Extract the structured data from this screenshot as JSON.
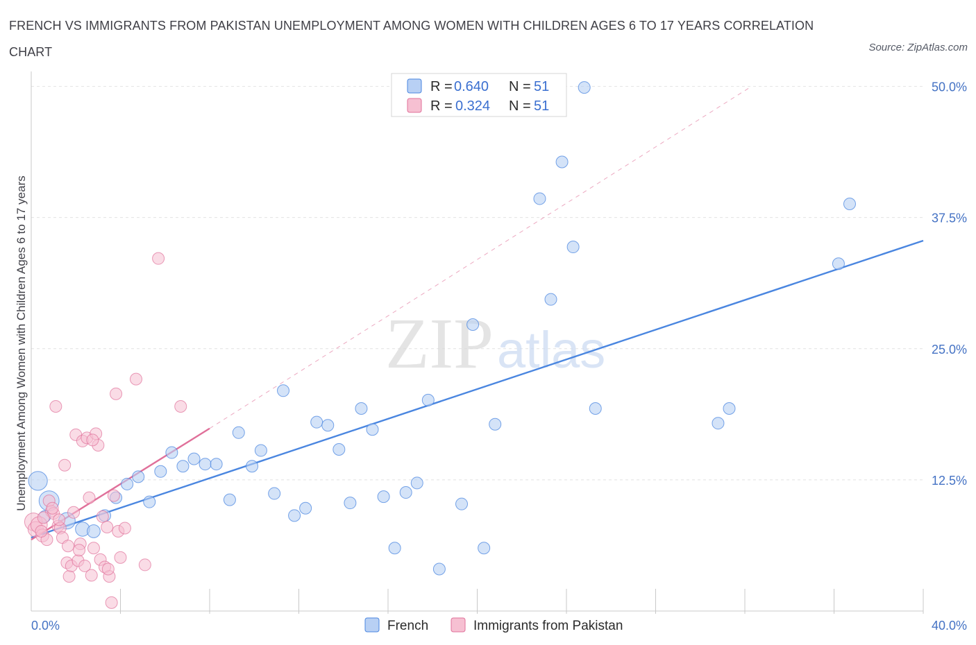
{
  "header": {
    "title": "FRENCH VS IMMIGRANTS FROM PAKISTAN UNEMPLOYMENT AMONG WOMEN WITH CHILDREN AGES 6 TO 17 YEARS CORRELATION CHART",
    "source": "Source: ZipAtlas.com"
  },
  "watermark": {
    "zip": "ZIP",
    "atlas": "atlas"
  },
  "legend": {
    "r_label": "R = ",
    "n_label": "N = ",
    "french": {
      "r": "0.640",
      "n": "51"
    },
    "pakistan": {
      "r": "0.324",
      "n": "51"
    }
  },
  "chart_data": {
    "type": "scatter",
    "title": "FRENCH VS IMMIGRANTS FROM PAKISTAN UNEMPLOYMENT AMONG WOMEN WITH CHILDREN AGES 6 TO 17 YEARS CORRELATION CHART",
    "ylabel": "Unemployment Among Women with Children Ages 6 to 17 years",
    "xlabel": "",
    "xlim": [
      0,
      40
    ],
    "ylim": [
      0,
      50.5
    ],
    "x_tick_labels": [
      {
        "value": 0,
        "label": "0.0%"
      },
      {
        "value": 40,
        "label": "40.0%"
      }
    ],
    "y_tick_labels": [
      {
        "value": 12.5,
        "label": "12.5%"
      },
      {
        "value": 25,
        "label": "25.0%"
      },
      {
        "value": 37.5,
        "label": "37.5%"
      },
      {
        "value": 50,
        "label": "50.0%"
      }
    ],
    "grid": true,
    "colors": {
      "french": "#4a86e0",
      "french_fill": "#b8d0f4",
      "pakistan": "#e0709a",
      "pakistan_fill": "#f6c0d2"
    },
    "series": [
      {
        "name": "French",
        "r": 0.64,
        "n": 51,
        "trend": {
          "x": [
            0,
            40
          ],
          "y": [
            7.0,
            35.3
          ]
        },
        "points": [
          [
            0.3,
            12.4,
            1.6
          ],
          [
            0.8,
            10.5,
            1.7
          ],
          [
            1.6,
            8.6,
            1.4
          ],
          [
            2.3,
            7.8,
            1.2
          ],
          [
            2.8,
            7.6,
            1.1
          ],
          [
            3.3,
            9.1,
            1
          ],
          [
            3.8,
            10.8,
            1
          ],
          [
            4.3,
            12.1,
            1
          ],
          [
            4.8,
            12.8,
            1
          ],
          [
            5.3,
            10.4,
            1
          ],
          [
            5.8,
            13.3,
            1
          ],
          [
            6.3,
            15.1,
            1
          ],
          [
            6.8,
            13.8,
            1
          ],
          [
            7.3,
            14.5,
            1
          ],
          [
            7.8,
            14.0,
            1
          ],
          [
            8.3,
            14.0,
            1
          ],
          [
            8.9,
            10.6,
            1
          ],
          [
            9.3,
            17.0,
            1
          ],
          [
            9.9,
            13.8,
            1
          ],
          [
            10.3,
            15.3,
            1
          ],
          [
            10.9,
            11.2,
            1
          ],
          [
            11.3,
            21.0,
            1
          ],
          [
            11.8,
            9.1,
            1
          ],
          [
            12.3,
            9.8,
            1
          ],
          [
            12.8,
            18.0,
            1
          ],
          [
            13.3,
            17.7,
            1
          ],
          [
            13.8,
            15.4,
            1
          ],
          [
            14.3,
            10.3,
            1
          ],
          [
            14.8,
            19.3,
            1
          ],
          [
            15.3,
            17.3,
            1
          ],
          [
            15.8,
            10.9,
            1
          ],
          [
            16.3,
            6.0,
            1
          ],
          [
            16.8,
            11.3,
            1
          ],
          [
            17.3,
            12.2,
            1
          ],
          [
            17.8,
            20.1,
            1
          ],
          [
            18.3,
            4.0,
            1
          ],
          [
            19.3,
            10.2,
            1
          ],
          [
            19.8,
            27.3,
            1
          ],
          [
            20.3,
            6.0,
            1
          ],
          [
            20.8,
            17.8,
            1
          ],
          [
            22.8,
            39.3,
            1
          ],
          [
            23.3,
            29.7,
            1
          ],
          [
            23.8,
            42.8,
            1
          ],
          [
            24.3,
            34.7,
            1
          ],
          [
            24.8,
            49.9,
            1
          ],
          [
            25.3,
            19.3,
            1
          ],
          [
            30.8,
            17.9,
            1
          ],
          [
            31.3,
            19.3,
            1
          ],
          [
            36.2,
            33.1,
            1
          ],
          [
            36.7,
            38.8,
            1
          ],
          [
            0.6,
            9.0,
            1
          ]
        ]
      },
      {
        "name": "Immigrants from Pakistan",
        "r": 0.324,
        "n": 51,
        "trend": {
          "x": [
            0,
            8.0
          ],
          "y": [
            6.8,
            17.4
          ]
        },
        "trend_dashed": {
          "x": [
            8.0,
            32.3
          ],
          "y": [
            17.4,
            50.0
          ]
        },
        "points": [
          [
            0.1,
            8.5,
            1.5
          ],
          [
            0.2,
            7.8,
            1.3
          ],
          [
            0.35,
            8.2,
            1.4
          ],
          [
            0.5,
            7.2,
            1.1
          ],
          [
            0.7,
            6.8,
            1
          ],
          [
            0.8,
            10.5,
            1
          ],
          [
            0.9,
            9.5,
            1
          ],
          [
            1.0,
            9.3,
            1
          ],
          [
            1.1,
            19.5,
            1
          ],
          [
            1.2,
            8.1,
            1
          ],
          [
            1.3,
            7.9,
            1
          ],
          [
            1.4,
            7.0,
            1
          ],
          [
            1.5,
            13.9,
            1
          ],
          [
            1.6,
            4.6,
            1
          ],
          [
            1.7,
            3.3,
            1
          ],
          [
            1.8,
            4.3,
            1
          ],
          [
            1.9,
            9.4,
            1
          ],
          [
            2.0,
            16.8,
            1
          ],
          [
            2.1,
            4.8,
            1
          ],
          [
            2.2,
            6.4,
            1
          ],
          [
            2.3,
            16.2,
            1
          ],
          [
            2.4,
            4.3,
            1
          ],
          [
            2.5,
            16.5,
            1
          ],
          [
            2.6,
            10.8,
            1
          ],
          [
            2.7,
            3.4,
            1
          ],
          [
            2.8,
            6.0,
            1
          ],
          [
            2.9,
            16.9,
            1
          ],
          [
            3.0,
            15.8,
            1
          ],
          [
            3.1,
            4.9,
            1
          ],
          [
            3.2,
            9.0,
            1
          ],
          [
            3.3,
            4.2,
            1
          ],
          [
            3.4,
            8.0,
            1
          ],
          [
            3.5,
            3.3,
            1
          ],
          [
            3.6,
            0.8,
            1
          ],
          [
            3.7,
            11.0,
            1
          ],
          [
            3.8,
            20.7,
            1
          ],
          [
            3.9,
            7.6,
            1
          ],
          [
            4.0,
            5.1,
            1
          ],
          [
            4.2,
            7.9,
            1
          ],
          [
            4.7,
            22.1,
            1
          ],
          [
            5.1,
            4.4,
            1
          ],
          [
            5.7,
            33.6,
            1
          ],
          [
            6.7,
            19.5,
            1
          ],
          [
            1.25,
            8.7,
            1
          ],
          [
            0.55,
            8.9,
            1
          ],
          [
            0.45,
            7.6,
            1
          ],
          [
            2.15,
            5.8,
            1
          ],
          [
            3.45,
            4.0,
            1
          ],
          [
            1.65,
            6.2,
            1
          ],
          [
            0.95,
            9.8,
            1
          ],
          [
            2.75,
            16.3,
            1
          ]
        ]
      }
    ]
  },
  "bottom_legend": {
    "french": "French",
    "pakistan": "Immigrants from Pakistan"
  }
}
